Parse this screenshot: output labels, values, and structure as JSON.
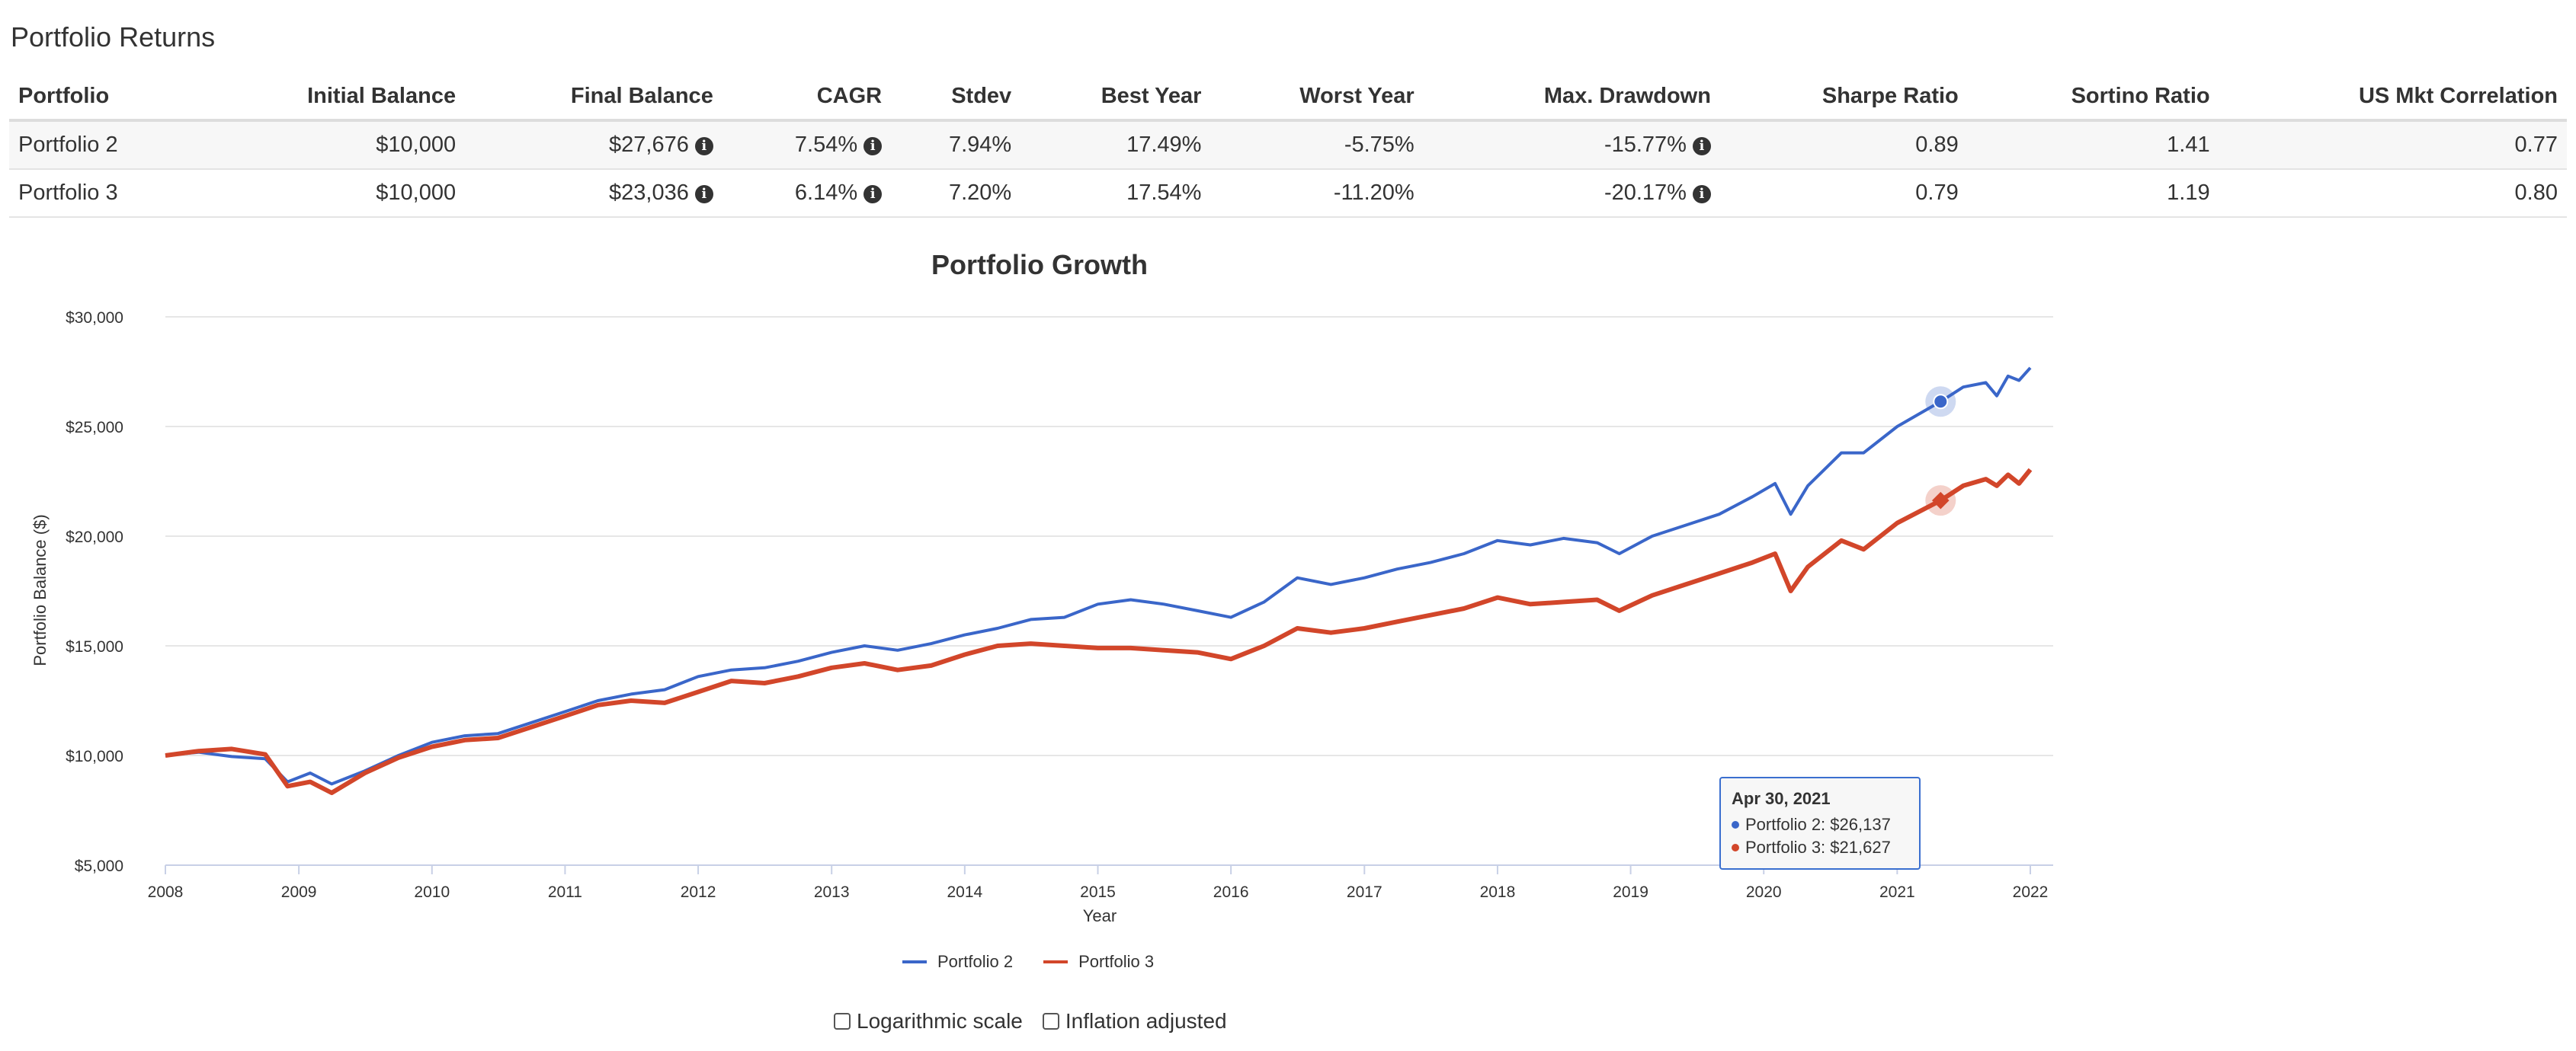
{
  "section_title": "Portfolio Returns",
  "table": {
    "headers": [
      "Portfolio",
      "Initial Balance",
      "Final Balance",
      "CAGR",
      "Stdev",
      "Best Year",
      "Worst Year",
      "Max. Drawdown",
      "Sharpe Ratio",
      "Sortino Ratio",
      "US Mkt Correlation"
    ],
    "rows": [
      {
        "portfolio": "Portfolio 2",
        "initial": "$10,000",
        "final": "$27,676",
        "cagr": "7.54%",
        "stdev": "7.94%",
        "best": "17.49%",
        "worst": "-5.75%",
        "drawdown": "-15.77%",
        "sharpe": "0.89",
        "sortino": "1.41",
        "corr": "0.77"
      },
      {
        "portfolio": "Portfolio 3",
        "initial": "$10,000",
        "final": "$23,036",
        "cagr": "6.14%",
        "stdev": "7.20%",
        "best": "17.54%",
        "worst": "-11.20%",
        "drawdown": "-20.17%",
        "sharpe": "0.79",
        "sortino": "1.19",
        "corr": "0.80"
      }
    ],
    "info_icon": "info-icon"
  },
  "chart_data": {
    "type": "line",
    "title": "Portfolio Growth",
    "xlabel": "Year",
    "ylabel": "Portfolio Balance ($)",
    "x_ticks": [
      "2008",
      "2009",
      "2010",
      "2011",
      "2012",
      "2013",
      "2014",
      "2015",
      "2016",
      "2017",
      "2018",
      "2019",
      "2020",
      "2021",
      "2022"
    ],
    "y_ticks": [
      "$5,000",
      "$10,000",
      "$15,000",
      "$20,000",
      "$25,000",
      "$30,000"
    ],
    "ylim": [
      5000,
      30000
    ],
    "xlim": [
      "2008-01",
      "2022-01"
    ],
    "grid": true,
    "legend_position": "bottom-center",
    "series": [
      {
        "name": "Portfolio 2",
        "color": "#3a66c9",
        "points": [
          [
            "2008-01-01",
            10000
          ],
          [
            "2008-04-01",
            10150
          ],
          [
            "2008-07-01",
            9950
          ],
          [
            "2008-10-01",
            9850
          ],
          [
            "2008-12-01",
            8800
          ],
          [
            "2009-02-01",
            9200
          ],
          [
            "2009-04-01",
            8700
          ],
          [
            "2009-07-01",
            9300
          ],
          [
            "2009-10-01",
            10000
          ],
          [
            "2010-01-01",
            10600
          ],
          [
            "2010-04-01",
            10900
          ],
          [
            "2010-07-01",
            11000
          ],
          [
            "2010-10-01",
            11500
          ],
          [
            "2011-01-01",
            12000
          ],
          [
            "2011-04-01",
            12500
          ],
          [
            "2011-07-01",
            12800
          ],
          [
            "2011-10-01",
            13000
          ],
          [
            "2012-01-01",
            13600
          ],
          [
            "2012-04-01",
            13900
          ],
          [
            "2012-07-01",
            14000
          ],
          [
            "2012-10-01",
            14300
          ],
          [
            "2013-01-01",
            14700
          ],
          [
            "2013-04-01",
            15000
          ],
          [
            "2013-07-01",
            14800
          ],
          [
            "2013-10-01",
            15100
          ],
          [
            "2014-01-01",
            15500
          ],
          [
            "2014-04-01",
            15800
          ],
          [
            "2014-07-01",
            16200
          ],
          [
            "2014-10-01",
            16300
          ],
          [
            "2015-01-01",
            16900
          ],
          [
            "2015-04-01",
            17100
          ],
          [
            "2015-07-01",
            16900
          ],
          [
            "2015-10-01",
            16600
          ],
          [
            "2016-01-01",
            16300
          ],
          [
            "2016-04-01",
            17000
          ],
          [
            "2016-07-01",
            18100
          ],
          [
            "2016-10-01",
            17800
          ],
          [
            "2017-01-01",
            18100
          ],
          [
            "2017-04-01",
            18500
          ],
          [
            "2017-07-01",
            18800
          ],
          [
            "2017-10-01",
            19200
          ],
          [
            "2018-01-01",
            19800
          ],
          [
            "2018-04-01",
            19600
          ],
          [
            "2018-07-01",
            19900
          ],
          [
            "2018-10-01",
            19700
          ],
          [
            "2018-12-01",
            19200
          ],
          [
            "2019-03-01",
            20000
          ],
          [
            "2019-06-01",
            20500
          ],
          [
            "2019-09-01",
            21000
          ],
          [
            "2019-12-01",
            21800
          ],
          [
            "2020-02-01",
            22400
          ],
          [
            "2020-03-15",
            21000
          ],
          [
            "2020-05-01",
            22300
          ],
          [
            "2020-08-01",
            23800
          ],
          [
            "2020-10-01",
            23800
          ],
          [
            "2021-01-01",
            25000
          ],
          [
            "2021-04-30",
            26137
          ],
          [
            "2021-07-01",
            26800
          ],
          [
            "2021-09-01",
            27000
          ],
          [
            "2021-10-01",
            26400
          ],
          [
            "2021-11-01",
            27300
          ],
          [
            "2021-12-01",
            27100
          ],
          [
            "2022-01-01",
            27676
          ]
        ]
      },
      {
        "name": "Portfolio 3",
        "color": "#d2462a",
        "points": [
          [
            "2008-01-01",
            10000
          ],
          [
            "2008-04-01",
            10200
          ],
          [
            "2008-07-01",
            10300
          ],
          [
            "2008-10-01",
            10050
          ],
          [
            "2008-12-01",
            8600
          ],
          [
            "2009-02-01",
            8800
          ],
          [
            "2009-04-01",
            8300
          ],
          [
            "2009-07-01",
            9200
          ],
          [
            "2009-10-01",
            9900
          ],
          [
            "2010-01-01",
            10400
          ],
          [
            "2010-04-01",
            10700
          ],
          [
            "2010-07-01",
            10800
          ],
          [
            "2010-10-01",
            11300
          ],
          [
            "2011-01-01",
            11800
          ],
          [
            "2011-04-01",
            12300
          ],
          [
            "2011-07-01",
            12500
          ],
          [
            "2011-10-01",
            12400
          ],
          [
            "2012-01-01",
            12900
          ],
          [
            "2012-04-01",
            13400
          ],
          [
            "2012-07-01",
            13300
          ],
          [
            "2012-10-01",
            13600
          ],
          [
            "2013-01-01",
            14000
          ],
          [
            "2013-04-01",
            14200
          ],
          [
            "2013-07-01",
            13900
          ],
          [
            "2013-10-01",
            14100
          ],
          [
            "2014-01-01",
            14600
          ],
          [
            "2014-04-01",
            15000
          ],
          [
            "2014-07-01",
            15100
          ],
          [
            "2014-10-01",
            15000
          ],
          [
            "2015-01-01",
            14900
          ],
          [
            "2015-04-01",
            14900
          ],
          [
            "2015-07-01",
            14800
          ],
          [
            "2015-10-01",
            14700
          ],
          [
            "2016-01-01",
            14400
          ],
          [
            "2016-04-01",
            15000
          ],
          [
            "2016-07-01",
            15800
          ],
          [
            "2016-10-01",
            15600
          ],
          [
            "2017-01-01",
            15800
          ],
          [
            "2017-04-01",
            16100
          ],
          [
            "2017-07-01",
            16400
          ],
          [
            "2017-10-01",
            16700
          ],
          [
            "2018-01-01",
            17200
          ],
          [
            "2018-04-01",
            16900
          ],
          [
            "2018-07-01",
            17000
          ],
          [
            "2018-10-01",
            17100
          ],
          [
            "2018-12-01",
            16600
          ],
          [
            "2019-03-01",
            17300
          ],
          [
            "2019-06-01",
            17800
          ],
          [
            "2019-09-01",
            18300
          ],
          [
            "2019-12-01",
            18800
          ],
          [
            "2020-02-01",
            19200
          ],
          [
            "2020-03-15",
            17500
          ],
          [
            "2020-05-01",
            18600
          ],
          [
            "2020-08-01",
            19800
          ],
          [
            "2020-10-01",
            19400
          ],
          [
            "2021-01-01",
            20600
          ],
          [
            "2021-04-30",
            21627
          ],
          [
            "2021-07-01",
            22300
          ],
          [
            "2021-09-01",
            22600
          ],
          [
            "2021-10-01",
            22300
          ],
          [
            "2021-11-01",
            22800
          ],
          [
            "2021-12-01",
            22400
          ],
          [
            "2022-01-01",
            23036
          ]
        ]
      }
    ],
    "hover": {
      "date": "Apr 30, 2021",
      "x": "2021-04-30",
      "lines": [
        "Portfolio 2: $26,137",
        "Portfolio 3: $21,627"
      ]
    }
  },
  "legend": {
    "p2_label": "Portfolio 2",
    "p3_label": "Portfolio 3",
    "p2_color": "#3a66c9",
    "p3_color": "#d2462a"
  },
  "options": {
    "log_label": "Logarithmic scale",
    "inflation_label": "Inflation adjusted"
  }
}
